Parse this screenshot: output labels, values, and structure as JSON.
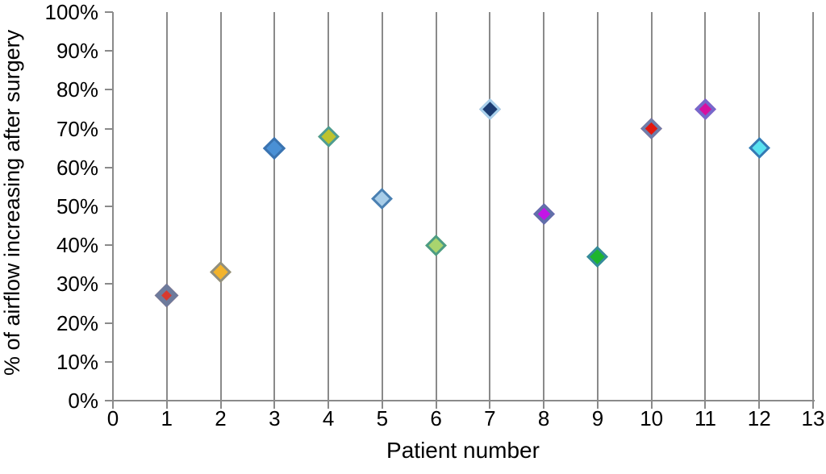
{
  "chart_data": {
    "type": "scatter",
    "title": "",
    "xlabel": "Patient number",
    "ylabel": "% of airflow increasing after surgery",
    "xlim": [
      0,
      13
    ],
    "ylim": [
      0,
      100
    ],
    "x_ticks": [
      0,
      1,
      2,
      3,
      4,
      5,
      6,
      7,
      8,
      9,
      10,
      11,
      12,
      13
    ],
    "y_tick_labels": [
      "0%",
      "10%",
      "20%",
      "30%",
      "40%",
      "50%",
      "60%",
      "70%",
      "80%",
      "90%",
      "100%"
    ],
    "grid": {
      "vertical": true,
      "horizontal": false,
      "color": "#8a8a8a"
    },
    "axis_color": "#8a8a8a",
    "legend": null,
    "marker_shape": "diamond",
    "points": [
      {
        "patient": 1,
        "value": 27,
        "fill": "#d8392f",
        "border": "#6e7b9c",
        "bw": 6,
        "size": 21
      },
      {
        "patient": 2,
        "value": 33,
        "fill": "#f3b32b",
        "border": "#8f8f80",
        "bw": 3,
        "size": 19
      },
      {
        "patient": 3,
        "value": 65,
        "fill": "#4a90d5",
        "border": "#3a73b0",
        "bw": 3,
        "size": 20
      },
      {
        "patient": 4,
        "value": 68,
        "fill": "#bec32e",
        "border": "#4d9c94",
        "bw": 3,
        "size": 19
      },
      {
        "patient": 5,
        "value": 52,
        "fill": "#a8cde8",
        "border": "#4a80b2",
        "bw": 3,
        "size": 19
      },
      {
        "patient": 6,
        "value": 40,
        "fill": "#a9d46e",
        "border": "#4d9c85",
        "bw": 3,
        "size": 19
      },
      {
        "patient": 7,
        "value": 75,
        "fill": "#1c3c72",
        "border": "#a9d1ed",
        "bw": 3,
        "size": 19
      },
      {
        "patient": 8,
        "value": 48,
        "fill": "#c414e6",
        "border": "#6070a9",
        "bw": 4,
        "size": 19
      },
      {
        "patient": 9,
        "value": 37,
        "fill": "#1db52e",
        "border": "#368a9d",
        "bw": 3,
        "size": 19
      },
      {
        "patient": 10,
        "value": 70,
        "fill": "#e4170e",
        "border": "#6e7dab",
        "bw": 4,
        "size": 19
      },
      {
        "patient": 11,
        "value": 75,
        "fill": "#d610a0",
        "border": "#7569cb",
        "bw": 4,
        "size": 19
      },
      {
        "patient": 12,
        "value": 65,
        "fill": "#59e2f0",
        "border": "#3579b4",
        "bw": 3,
        "size": 19
      }
    ]
  }
}
